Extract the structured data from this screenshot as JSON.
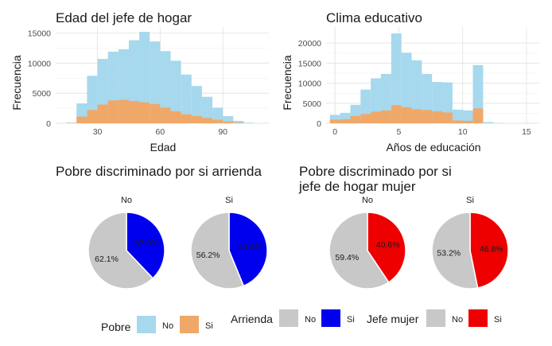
{
  "colors": {
    "pobre_no": "#a6d8ee",
    "pobre_si": "#f0a868",
    "pie_no": "#c8c8c8",
    "pie_arrienda_si": "#0000ee",
    "pie_mujer_si": "#ee0000",
    "grid": "#e6e6e6",
    "text": "#1a1a1a"
  },
  "chart_data": [
    {
      "type": "histogram",
      "title": "Edad del jefe de hogar",
      "xlabel": "Edad",
      "ylabel": "Frecuencia",
      "xlim": [
        10,
        112
      ],
      "ylim": [
        0,
        16000
      ],
      "xticks": [
        30,
        60,
        90
      ],
      "yticks": [
        0,
        5000,
        10000,
        15000
      ],
      "bin_width": 5,
      "bin_starts": [
        15,
        20,
        25,
        30,
        35,
        40,
        45,
        50,
        55,
        60,
        65,
        70,
        75,
        80,
        85,
        90,
        95,
        100,
        105
      ],
      "series": [
        {
          "name": "No",
          "values": [
            100,
            3300,
            7900,
            10700,
            11900,
            12300,
            13800,
            15200,
            13600,
            12000,
            10400,
            8100,
            6200,
            4400,
            2600,
            1200,
            400,
            100,
            0
          ]
        },
        {
          "name": "Si",
          "values": [
            50,
            1100,
            2200,
            3100,
            3800,
            3900,
            3700,
            3500,
            3200,
            2600,
            2000,
            1500,
            1200,
            900,
            600,
            300,
            100,
            0,
            0
          ]
        }
      ]
    },
    {
      "type": "histogram",
      "title": "Clima educativo",
      "xlabel": "Años de educación",
      "ylabel": "Frecuencia",
      "xlim": [
        -0.7,
        16
      ],
      "ylim": [
        0,
        24000
      ],
      "xticks": [
        0,
        5,
        10,
        15
      ],
      "yticks": [
        0,
        5000,
        10000,
        15000,
        20000
      ],
      "bin_width": 0.8,
      "bin_starts": [
        -0.4,
        0.4,
        1.2,
        2.0,
        2.8,
        3.6,
        4.4,
        5.2,
        6.0,
        6.8,
        7.6,
        8.4,
        9.2,
        10.0,
        10.8,
        11.6,
        12.4,
        13.2,
        14.0,
        14.8
      ],
      "series": [
        {
          "name": "No",
          "values": [
            2100,
            2600,
            4600,
            8400,
            11200,
            12300,
            22400,
            17600,
            15700,
            12300,
            10300,
            10200,
            3400,
            3200,
            14500,
            300,
            100,
            0,
            0,
            50
          ]
        },
        {
          "name": "Si",
          "values": [
            900,
            1000,
            1800,
            2300,
            2900,
            3200,
            4500,
            4000,
            3500,
            3300,
            3000,
            2700,
            700,
            600,
            3700,
            0,
            0,
            0,
            0,
            0
          ]
        }
      ]
    },
    {
      "type": "pie",
      "title": "Pobre discriminado por si arrienda",
      "facets": [
        {
          "label": "No",
          "slices": [
            {
              "name": "Si",
              "value": 37.9,
              "label": "37.9%"
            },
            {
              "name": "No",
              "value": 62.1,
              "label": "62.1%"
            }
          ]
        },
        {
          "label": "Si",
          "slices": [
            {
              "name": "Si",
              "value": 43.8,
              "label": "43.8%"
            },
            {
              "name": "No",
              "value": 56.2,
              "label": "56.2%"
            }
          ]
        }
      ]
    },
    {
      "type": "pie",
      "title": "Pobre discriminado por si jefe de hogar mujer",
      "title_lines": [
        "Pobre discriminado por si",
        "jefe de hogar mujer"
      ],
      "facets": [
        {
          "label": "No",
          "slices": [
            {
              "name": "Si",
              "value": 40.6,
              "label": "40.6%"
            },
            {
              "name": "No",
              "value": 59.4,
              "label": "59.4%"
            }
          ]
        },
        {
          "label": "Si",
          "slices": [
            {
              "name": "Si",
              "value": 46.8,
              "label": "46.8%"
            },
            {
              "name": "No",
              "value": 53.2,
              "label": "53.2%"
            }
          ]
        }
      ]
    }
  ],
  "legends": [
    {
      "title": "Pobre",
      "keys": [
        "No",
        "Si"
      ]
    },
    {
      "title": "Arrienda",
      "keys": [
        "No",
        "Si"
      ]
    },
    {
      "title": "Jefe mujer",
      "keys": [
        "No",
        "Si"
      ]
    }
  ]
}
